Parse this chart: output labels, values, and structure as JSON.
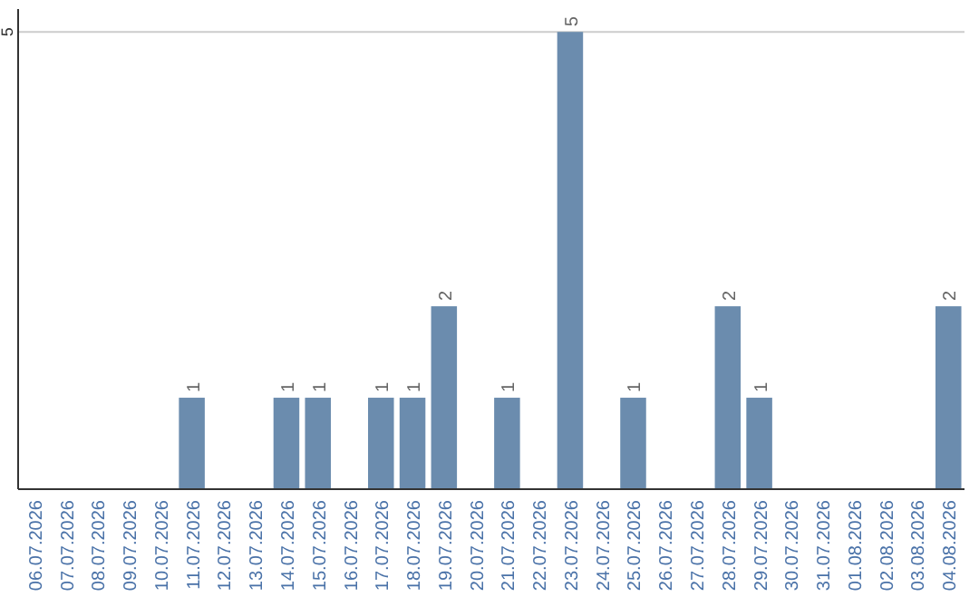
{
  "chart_data": {
    "type": "bar",
    "categories": [
      "06.07.2026",
      "07.07.2026",
      "08.07.2026",
      "09.07.2026",
      "10.07.2026",
      "11.07.2026",
      "12.07.2026",
      "13.07.2026",
      "14.07.2026",
      "15.07.2026",
      "16.07.2026",
      "17.07.2026",
      "18.07.2026",
      "19.07.2026",
      "20.07.2026",
      "21.07.2026",
      "22.07.2026",
      "23.07.2026",
      "24.07.2026",
      "25.07.2026",
      "26.07.2026",
      "27.07.2026",
      "28.07.2026",
      "29.07.2026",
      "30.07.2026",
      "31.07.2026",
      "01.08.2026",
      "02.08.2026",
      "03.08.2026",
      "04.08.2026"
    ],
    "values": [
      0,
      0,
      0,
      0,
      0,
      1,
      0,
      0,
      1,
      1,
      0,
      1,
      1,
      2,
      0,
      1,
      0,
      5,
      0,
      1,
      0,
      0,
      2,
      1,
      0,
      0,
      0,
      0,
      0,
      2
    ],
    "value_labels": [
      null,
      null,
      null,
      null,
      null,
      "1",
      null,
      null,
      "1",
      "1",
      null,
      "1",
      "1",
      "2",
      null,
      "1",
      null,
      "5",
      null,
      "1",
      null,
      null,
      "2",
      "1",
      null,
      null,
      null,
      null,
      null,
      "2"
    ],
    "color": "#6b8cae",
    "ylim": [
      0,
      5.25
    ],
    "yticks": [
      5
    ],
    "grid": "y"
  }
}
